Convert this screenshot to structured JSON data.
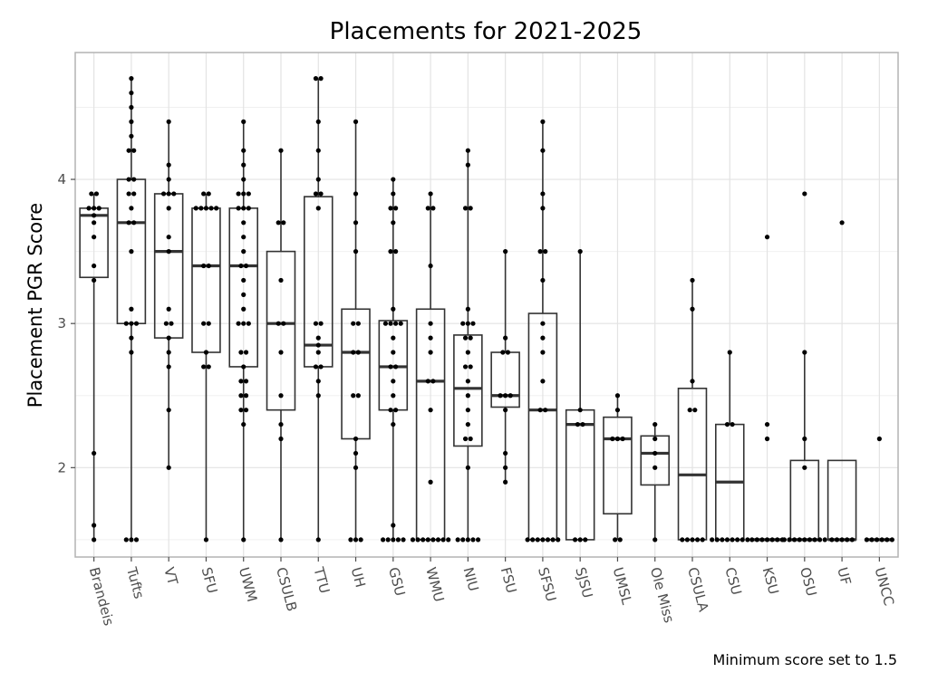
{
  "chart_data": {
    "type": "box",
    "title": "Placements for 2021-2025",
    "ylabel": "Placement PGR Score",
    "xlabel": "",
    "caption": "Minimum score set to 1.5",
    "ylim": [
      1.38,
      4.88
    ],
    "y_ticks": [
      2,
      3,
      4
    ],
    "grid": true,
    "categories": [
      "Brandeis",
      "Tufts",
      "VT",
      "SFU",
      "UWM",
      "CSULB",
      "TTU",
      "UH",
      "GSU",
      "WMU",
      "NIU",
      "FSU",
      "SFSU",
      "SJSU",
      "UMSL",
      "Ole Miss",
      "CSULA",
      "CSU",
      "KSU",
      "OSU",
      "UF",
      "UNCC"
    ],
    "boxes": [
      {
        "min": 1.5,
        "q1": 3.32,
        "median": 3.75,
        "q3": 3.8,
        "max": 3.9
      },
      {
        "min": 1.5,
        "q1": 3.0,
        "median": 3.7,
        "q3": 4.0,
        "max": 4.7
      },
      {
        "min": 2.0,
        "q1": 2.9,
        "median": 3.5,
        "q3": 3.9,
        "max": 4.4
      },
      {
        "min": 1.5,
        "q1": 2.8,
        "median": 3.4,
        "q3": 3.8,
        "max": 3.9
      },
      {
        "min": 1.5,
        "q1": 2.7,
        "median": 3.4,
        "q3": 3.8,
        "max": 4.4
      },
      {
        "min": 1.5,
        "q1": 2.4,
        "median": 3.0,
        "q3": 3.5,
        "max": 4.2
      },
      {
        "min": 1.5,
        "q1": 2.7,
        "median": 2.85,
        "q3": 3.88,
        "max": 4.7
      },
      {
        "min": 1.5,
        "q1": 2.2,
        "median": 2.8,
        "q3": 3.1,
        "max": 4.4
      },
      {
        "min": 1.5,
        "q1": 2.4,
        "median": 2.7,
        "q3": 3.02,
        "max": 4.0
      },
      {
        "min": 1.5,
        "q1": 1.5,
        "median": 2.6,
        "q3": 3.1,
        "max": 3.9
      },
      {
        "min": 1.5,
        "q1": 2.15,
        "median": 2.55,
        "q3": 2.92,
        "max": 4.2
      },
      {
        "min": 1.9,
        "q1": 2.42,
        "median": 2.5,
        "q3": 2.8,
        "max": 3.5
      },
      {
        "min": 1.5,
        "q1": 1.5,
        "median": 2.4,
        "q3": 3.07,
        "max": 4.4
      },
      {
        "min": 1.5,
        "q1": 1.5,
        "median": 2.3,
        "q3": 2.4,
        "max": 3.5
      },
      {
        "min": 1.5,
        "q1": 1.68,
        "median": 2.2,
        "q3": 2.35,
        "max": 2.5
      },
      {
        "min": 1.5,
        "q1": 1.88,
        "median": 2.1,
        "q3": 2.22,
        "max": 2.3
      },
      {
        "min": 1.5,
        "q1": 1.5,
        "median": 1.95,
        "q3": 2.55,
        "max": 3.3
      },
      {
        "min": 1.5,
        "q1": 1.5,
        "median": 1.9,
        "q3": 2.3,
        "max": 2.8
      },
      {
        "min": 1.5,
        "q1": 1.5,
        "median": 1.5,
        "q3": 1.5,
        "max": 1.5
      },
      {
        "min": 1.5,
        "q1": 1.5,
        "median": 1.5,
        "q3": 2.05,
        "max": 2.8
      },
      {
        "min": 1.5,
        "q1": 1.5,
        "median": 1.5,
        "q3": 2.05,
        "max": 2.05
      },
      {
        "min": 1.5,
        "q1": 1.5,
        "median": 1.5,
        "q3": 1.5,
        "max": 1.5
      }
    ],
    "points": [
      [
        1.5,
        1.6,
        2.1,
        3.3,
        3.4,
        3.6,
        3.7,
        3.75,
        3.8,
        3.8,
        3.8,
        3.9,
        3.9
      ],
      [
        1.5,
        1.5,
        1.5,
        2.8,
        2.9,
        3.0,
        3.0,
        3.0,
        3.1,
        3.5,
        3.7,
        3.7,
        3.8,
        3.9,
        3.9,
        4.0,
        4.0,
        4.2,
        4.2,
        4.3,
        4.4,
        4.5,
        4.6,
        4.7
      ],
      [
        2.0,
        2.4,
        2.7,
        2.8,
        2.9,
        3.0,
        3.0,
        3.1,
        3.5,
        3.6,
        3.8,
        3.9,
        3.9,
        3.9,
        4.0,
        4.1,
        4.4
      ],
      [
        1.5,
        2.7,
        2.7,
        2.8,
        3.0,
        3.0,
        3.4,
        3.4,
        3.8,
        3.8,
        3.8,
        3.8,
        3.8,
        3.9,
        3.9
      ],
      [
        1.5,
        2.3,
        2.4,
        2.4,
        2.5,
        2.5,
        2.6,
        2.6,
        2.7,
        2.8,
        2.8,
        3.0,
        3.0,
        3.0,
        3.1,
        3.2,
        3.3,
        3.4,
        3.4,
        3.5,
        3.6,
        3.7,
        3.8,
        3.8,
        3.8,
        3.9,
        3.9,
        3.9,
        4.0,
        4.1,
        4.2,
        4.4
      ],
      [
        1.5,
        2.2,
        2.3,
        2.5,
        2.8,
        3.0,
        3.0,
        3.3,
        3.7,
        3.7,
        4.2
      ],
      [
        1.5,
        2.5,
        2.6,
        2.7,
        2.7,
        2.8,
        2.85,
        2.9,
        3.0,
        3.0,
        3.8,
        3.9,
        3.9,
        4.0,
        4.2,
        4.4,
        4.7,
        4.7
      ],
      [
        1.5,
        1.5,
        1.5,
        2.0,
        2.1,
        2.2,
        2.5,
        2.5,
        2.8,
        2.8,
        3.0,
        3.0,
        3.5,
        3.7,
        3.9,
        4.4
      ],
      [
        1.5,
        1.5,
        1.5,
        1.5,
        1.5,
        1.6,
        2.3,
        2.4,
        2.4,
        2.5,
        2.6,
        2.7,
        2.7,
        2.8,
        2.9,
        3.0,
        3.0,
        3.0,
        3.0,
        3.1,
        3.5,
        3.5,
        3.7,
        3.8,
        3.8,
        3.9,
        4.0
      ],
      [
        1.5,
        1.5,
        1.5,
        1.5,
        1.5,
        1.5,
        1.5,
        1.5,
        1.9,
        2.4,
        2.6,
        2.6,
        2.8,
        2.9,
        3.0,
        3.4,
        3.8,
        3.8,
        3.9
      ],
      [
        1.5,
        1.5,
        1.5,
        1.5,
        1.5,
        2.0,
        2.2,
        2.2,
        2.3,
        2.4,
        2.5,
        2.6,
        2.7,
        2.7,
        2.8,
        2.9,
        2.9,
        3.0,
        3.0,
        3.0,
        3.1,
        3.8,
        3.8,
        4.1,
        4.2
      ],
      [
        1.9,
        2.0,
        2.1,
        2.4,
        2.5,
        2.5,
        2.5,
        2.8,
        2.8,
        2.9,
        3.5
      ],
      [
        1.5,
        1.5,
        1.5,
        1.5,
        1.5,
        1.5,
        1.5,
        2.4,
        2.4,
        2.6,
        2.8,
        2.9,
        3.0,
        3.3,
        3.5,
        3.5,
        3.8,
        3.9,
        4.2,
        4.4
      ],
      [
        1.5,
        1.5,
        1.5,
        2.3,
        2.3,
        2.4,
        3.5
      ],
      [
        1.5,
        1.5,
        2.2,
        2.2,
        2.2,
        2.4,
        2.5
      ],
      [
        1.5,
        2.0,
        2.1,
        2.2,
        2.3
      ],
      [
        1.5,
        1.5,
        1.5,
        1.5,
        1.5,
        2.4,
        2.4,
        2.6,
        3.1,
        3.3
      ],
      [
        1.5,
        1.5,
        1.5,
        1.5,
        1.5,
        1.5,
        1.5,
        1.5,
        2.3,
        2.3,
        2.8
      ],
      [
        1.5,
        1.5,
        1.5,
        1.5,
        1.5,
        1.5,
        1.5,
        2.2,
        2.3,
        3.6
      ],
      [
        1.5,
        1.5,
        1.5,
        1.5,
        1.5,
        1.5,
        1.5,
        1.5,
        1.5,
        2.0,
        2.2,
        2.8,
        3.9
      ],
      [
        1.5,
        1.5,
        1.5,
        1.5,
        1.5,
        3.7
      ],
      [
        1.5,
        1.5,
        1.5,
        1.5,
        1.5,
        1.5,
        2.2
      ]
    ]
  }
}
